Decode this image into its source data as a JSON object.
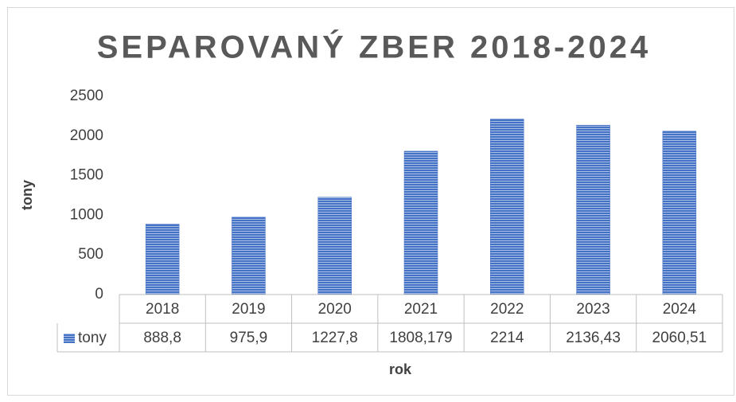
{
  "chart_data": {
    "type": "bar",
    "title": "SEPAROVANÝ ZBER 2018-2024",
    "x_label": "rok",
    "y_label": "tony",
    "categories": [
      "2018",
      "2019",
      "2020",
      "2021",
      "2022",
      "2023",
      "2024"
    ],
    "series": [
      {
        "name": "tony",
        "color": "#4472c4",
        "values": [
          888.8,
          975.9,
          1227.8,
          1808.179,
          2214,
          2136.43,
          2060.51
        ],
        "value_labels": [
          "888,8",
          "975,9",
          "1227,8",
          "1808,179",
          "2214",
          "2136,43",
          "2060,51"
        ]
      }
    ],
    "ylim": [
      0,
      2500
    ],
    "yticks": [
      0,
      500,
      1000,
      1500,
      2000,
      2500
    ],
    "grid": false,
    "data_table": true
  }
}
